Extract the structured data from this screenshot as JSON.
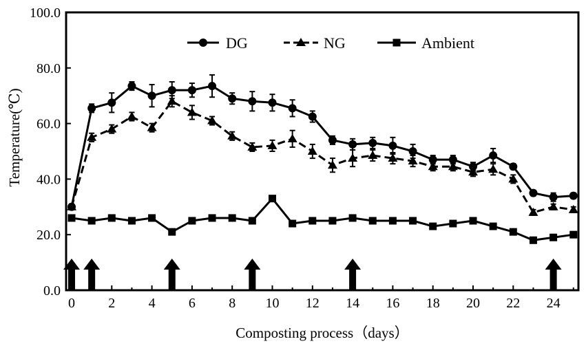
{
  "chart_data": {
    "type": "line",
    "title": "",
    "xlabel": "Composting process（days）",
    "ylabel": "Temperature(℃)",
    "xlim": [
      0,
      25
    ],
    "ylim": [
      0,
      100
    ],
    "x_ticks": [
      0,
      2,
      4,
      6,
      8,
      10,
      12,
      14,
      16,
      18,
      20,
      22,
      24
    ],
    "y_ticks": [
      "0.0",
      "20.0",
      "40.0",
      "60.0",
      "80.0",
      "100.0"
    ],
    "grid": false,
    "legend_position": "top-center",
    "x": [
      0,
      1,
      2,
      3,
      4,
      5,
      6,
      7,
      8,
      9,
      10,
      11,
      12,
      13,
      14,
      15,
      16,
      17,
      18,
      19,
      20,
      21,
      22,
      23,
      24,
      25
    ],
    "series": [
      {
        "name": "DG",
        "marker": "circle",
        "line": "solid",
        "values": [
          30,
          65.5,
          67.5,
          73.5,
          70,
          72,
          72,
          73.5,
          69,
          68,
          67.5,
          65.5,
          62.5,
          54,
          52.5,
          53,
          52,
          50,
          47,
          47,
          44.5,
          48.5,
          44.5,
          35,
          33.5,
          34
        ],
        "errors": [
          1,
          1.5,
          3.5,
          1.5,
          4,
          3,
          2.5,
          4,
          2,
          3.5,
          3,
          3,
          2,
          1.5,
          2,
          2,
          3,
          2.5,
          1.5,
          1.5,
          1.5,
          2.5,
          1,
          1,
          1.5,
          1
        ]
      },
      {
        "name": "NG",
        "marker": "triangle",
        "line": "dashed",
        "values": [
          30,
          55,
          58,
          62.5,
          58.5,
          68,
          64,
          61,
          55.5,
          51.5,
          52,
          54.5,
          50,
          45,
          47.5,
          48.5,
          47.5,
          46.5,
          44.5,
          44.5,
          42.5,
          43.5,
          40,
          28,
          30,
          29
        ],
        "errors": [
          1,
          1.5,
          1.5,
          1.5,
          1.5,
          2,
          2.5,
          1.5,
          1.5,
          1.5,
          2,
          3,
          2.5,
          2.5,
          3,
          2,
          2,
          2,
          1.5,
          1.5,
          1.5,
          2,
          1.5,
          1,
          1,
          1
        ]
      },
      {
        "name": "Ambient",
        "marker": "square",
        "line": "solid",
        "values": [
          26,
          25,
          26,
          25,
          26,
          21,
          25,
          26,
          26,
          25,
          33,
          24,
          25,
          25,
          26,
          25,
          25,
          25,
          23,
          24,
          25,
          23,
          21,
          18,
          19,
          20
        ]
      }
    ],
    "turning_days": [
      0,
      1,
      5,
      9,
      14,
      24
    ]
  }
}
